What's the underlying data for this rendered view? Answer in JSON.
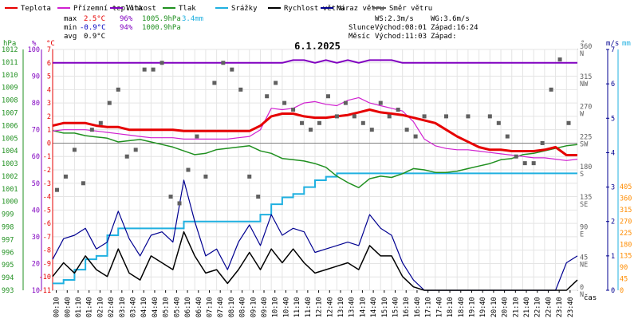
{
  "chart_data": {
    "type": "line",
    "title": "6.1.2025",
    "legend": [
      {
        "label": "Teplota",
        "color": "#e60000"
      },
      {
        "label": "Přízemní teplota",
        "color": "#d020d0"
      },
      {
        "label": "Vlhkost",
        "color": "#8000c0"
      },
      {
        "label": "Tlak",
        "color": "#209020"
      },
      {
        "label": "Srážky",
        "color": "#20b0e0"
      },
      {
        "label": "Rychlost větru",
        "color": "#000000"
      },
      {
        "label": "Náraz větru",
        "color": "#000090"
      },
      {
        "label": "Směr větru",
        "color": "#606060"
      }
    ],
    "stats": {
      "max_label": "max",
      "max_temp": "2.5°C",
      "max_hum": "96%",
      "max_press": "1005.9hPa",
      "max_rain": "3.4mm",
      "min_label": "min",
      "min_temp": "-0.9°C",
      "min_hum": "94%",
      "min_press": "1000.9hPa",
      "avg_label": "avg",
      "avg_temp": "0.9°C",
      "ws": "WS:2.3m/s",
      "wg": "WG:3.6m/s",
      "sun_label": "Slunce",
      "sun_rise": "Východ:08:01",
      "sun_set": "Západ:16:24",
      "moon_label": "Měsíc",
      "moon_rise": "Východ:11:03",
      "moon_set": "Západ:"
    },
    "axes": {
      "hpa_title": "hPa",
      "pct_title": "%",
      "temp_title": "°C",
      "dir_title": "°",
      "ms_title": "m/s",
      "mm_title": "mm",
      "x_title": "čas",
      "hpa_ticks": [
        "993",
        "994",
        "995",
        "996",
        "997",
        "998",
        "999",
        "1000",
        "1001",
        "1002",
        "1003",
        "1004",
        "1005",
        "1006",
        "1007",
        "1008",
        "1009",
        "1010",
        "1011",
        "1012"
      ],
      "pct_ticks": [
        "10",
        "20",
        "30",
        "40",
        "50",
        "60",
        "70",
        "80",
        "90",
        "100"
      ],
      "temp_ticks": [
        "-11",
        "-10",
        "-9",
        "-8",
        "-7",
        "-6",
        "-5",
        "-4",
        "-3",
        "-2",
        "-1",
        "0",
        "1",
        "2",
        "3",
        "4",
        "5",
        "6",
        "7"
      ],
      "dir_ticks": [
        {
          "deg": "0",
          "dir": "N"
        },
        {
          "deg": "45",
          "dir": "NE"
        },
        {
          "deg": "90",
          "dir": "E"
        },
        {
          "deg": "135",
          "dir": "SE"
        },
        {
          "deg": "180",
          "dir": "S"
        },
        {
          "deg": "225",
          "dir": "SW"
        },
        {
          "deg": "270",
          "dir": "W"
        },
        {
          "deg": "315",
          "dir": "NW"
        },
        {
          "deg": "360",
          "dir": "N"
        }
      ],
      "ms_ticks": [
        "0",
        "1",
        "2",
        "3",
        "4",
        "5",
        "6",
        "7"
      ],
      "mm_ticks": [
        "0",
        "45",
        "90",
        "135",
        "180",
        "225",
        "270",
        "315",
        "360",
        "405"
      ],
      "x_ticks": [
        "00:10",
        "00:40",
        "01:10",
        "01:40",
        "02:10",
        "02:40",
        "03:10",
        "03:40",
        "04:10",
        "04:40",
        "05:10",
        "05:40",
        "06:10",
        "06:40",
        "07:10",
        "07:40",
        "08:10",
        "08:40",
        "09:10",
        "09:40",
        "10:10",
        "10:40",
        "11:10",
        "11:40",
        "12:10",
        "12:40",
        "13:10",
        "13:40",
        "14:10",
        "14:40",
        "15:10",
        "15:40",
        "16:10",
        "16:40",
        "17:10",
        "17:40",
        "18:10",
        "18:40",
        "19:10",
        "19:40",
        "20:10",
        "20:40",
        "21:10",
        "21:40",
        "22:10",
        "22:40",
        "23:10",
        "23:40"
      ],
      "temp_range": [
        -11,
        7
      ],
      "humidity_range": [
        10,
        100
      ],
      "pressure_range": [
        993,
        1012
      ],
      "wind_range": [
        0,
        7
      ],
      "direction_range": [
        0,
        360
      ],
      "time_range_h": [
        0,
        24
      ]
    },
    "series": [
      {
        "name": "Teplota",
        "unit": "°C",
        "x": [
          0.0,
          0.5,
          1.0,
          1.5,
          2.0,
          2.5,
          3.0,
          3.5,
          4.0,
          4.5,
          5.0,
          5.5,
          6.0,
          6.5,
          7.0,
          7.5,
          8.0,
          8.5,
          9.0,
          9.5,
          10.0,
          10.5,
          11.0,
          11.5,
          12.0,
          12.5,
          13.0,
          13.5,
          14.0,
          14.5,
          15.0,
          15.5,
          16.0,
          16.5,
          17.0,
          17.5,
          18.0,
          18.5,
          19.0,
          19.5,
          20.0,
          20.5,
          21.0,
          21.5,
          22.0,
          22.5,
          23.0,
          23.5,
          24.0
        ],
        "y": [
          1.3,
          1.5,
          1.5,
          1.5,
          1.3,
          1.2,
          1.2,
          1.0,
          1.0,
          1.0,
          1.0,
          1.0,
          0.9,
          0.9,
          0.9,
          0.9,
          0.9,
          0.9,
          0.9,
          1.3,
          2.0,
          2.2,
          2.2,
          2.0,
          1.9,
          1.9,
          2.0,
          2.1,
          2.3,
          2.5,
          2.3,
          2.2,
          2.1,
          1.9,
          1.7,
          1.5,
          1.0,
          0.5,
          0.1,
          -0.3,
          -0.5,
          -0.5,
          -0.6,
          -0.6,
          -0.6,
          -0.5,
          -0.3,
          -0.9,
          -0.9
        ]
      },
      {
        "name": "Přízemní teplota",
        "unit": "°C",
        "x": [
          0.0,
          0.5,
          1.0,
          1.5,
          2.0,
          2.5,
          3.0,
          3.5,
          4.0,
          4.5,
          5.0,
          5.5,
          6.0,
          6.5,
          7.0,
          7.5,
          8.0,
          8.5,
          9.0,
          9.5,
          10.0,
          10.5,
          11.0,
          11.5,
          12.0,
          12.5,
          13.0,
          13.5,
          14.0,
          14.5,
          15.0,
          15.5,
          16.0,
          16.5,
          17.0,
          17.5,
          18.0,
          18.5,
          19.0,
          19.5,
          20.0,
          20.5,
          21.0,
          21.5,
          22.0,
          22.5,
          23.0,
          23.5,
          24.0
        ],
        "y": [
          0.9,
          1.0,
          1.0,
          1.0,
          0.9,
          0.8,
          0.7,
          0.6,
          0.5,
          0.4,
          0.4,
          0.4,
          0.3,
          0.3,
          0.3,
          0.3,
          0.3,
          0.4,
          0.5,
          1.0,
          2.6,
          2.5,
          2.6,
          3.0,
          3.1,
          2.9,
          2.8,
          3.2,
          3.4,
          3.0,
          2.8,
          2.6,
          2.4,
          1.6,
          0.3,
          -0.2,
          -0.4,
          -0.5,
          -0.5,
          -0.6,
          -0.7,
          -0.8,
          -0.9,
          -1.0,
          -1.1,
          -1.1,
          -1.2,
          -1.3,
          -1.2
        ]
      },
      {
        "name": "Vlhkost",
        "unit": "%",
        "x": [
          0,
          10.5,
          11.0,
          11.5,
          12.0,
          12.5,
          13.0,
          13.5,
          14.0,
          14.5,
          15.0,
          15.5,
          16.0,
          24
        ],
        "y": [
          95,
          95,
          96,
          96,
          95,
          96,
          95,
          96,
          95,
          96,
          96,
          96,
          95,
          95
        ]
      },
      {
        "name": "Tlak",
        "unit": "hPa",
        "x": [
          0.0,
          0.5,
          1.0,
          1.5,
          2.0,
          2.5,
          3.0,
          3.5,
          4.0,
          4.5,
          5.0,
          5.5,
          6.0,
          6.5,
          7.0,
          7.5,
          8.0,
          8.5,
          9.0,
          9.5,
          10.0,
          10.5,
          11.0,
          11.5,
          12.0,
          12.5,
          13.0,
          13.5,
          14.0,
          14.5,
          15.0,
          15.5,
          16.0,
          16.5,
          17.0,
          17.5,
          18.0,
          18.5,
          19.0,
          19.5,
          20.0,
          20.5,
          21.0,
          21.5,
          22.0,
          22.5,
          23.0,
          23.5,
          24.0
        ],
        "y": [
          1005.6,
          1005.4,
          1005.4,
          1005.2,
          1005.1,
          1005.0,
          1004.7,
          1004.8,
          1004.9,
          1004.7,
          1004.5,
          1004.3,
          1004.0,
          1003.7,
          1003.8,
          1004.1,
          1004.2,
          1004.3,
          1004.4,
          1004.0,
          1003.8,
          1003.4,
          1003.3,
          1003.2,
          1003.0,
          1002.7,
          1002.0,
          1001.5,
          1001.1,
          1001.8,
          1002.0,
          1001.9,
          1002.2,
          1002.6,
          1002.5,
          1002.3,
          1002.3,
          1002.4,
          1002.6,
          1002.8,
          1003.0,
          1003.3,
          1003.4,
          1003.7,
          1003.8,
          1004.0,
          1004.2,
          1004.4,
          1004.5
        ]
      },
      {
        "name": "Srážky",
        "unit": "mm",
        "x": [
          0.0,
          0.5,
          1.0,
          1.5,
          2.0,
          2.5,
          3.0,
          3.5,
          4.0,
          4.5,
          5.0,
          5.5,
          6.0,
          6.5,
          7.0,
          7.5,
          8.0,
          8.5,
          9.0,
          9.5,
          10.0,
          10.5,
          11.0,
          11.5,
          12.0,
          12.5,
          13.0,
          13.5,
          14.0,
          14.5,
          15.0,
          15.5,
          16.0,
          16.5,
          17.0,
          17.5,
          18.0,
          18.5,
          19.0,
          19.5,
          20.0,
          20.5,
          21.0,
          21.5,
          22.0,
          22.5,
          23.0,
          23.5,
          24.0
        ],
        "y": [
          0.2,
          0.3,
          0.6,
          0.9,
          1.0,
          1.6,
          1.8,
          1.8,
          1.8,
          1.8,
          1.8,
          1.8,
          2.0,
          2.0,
          2.0,
          2.0,
          2.0,
          2.0,
          2.0,
          2.2,
          2.5,
          2.7,
          2.8,
          3.0,
          3.2,
          3.3,
          3.4,
          3.4,
          3.4,
          3.4,
          3.4,
          3.4,
          3.4,
          3.4,
          3.4,
          3.4,
          3.4,
          3.4,
          3.4,
          3.4,
          3.4,
          3.4,
          3.4,
          3.4,
          3.4,
          3.4,
          3.4,
          3.4,
          3.4
        ]
      },
      {
        "name": "Rychlost větru",
        "unit": "m/s",
        "x": [
          0.0,
          0.5,
          1.0,
          1.5,
          2.0,
          2.5,
          3.0,
          3.5,
          4.0,
          4.5,
          5.0,
          5.5,
          6.0,
          6.5,
          7.0,
          7.5,
          8.0,
          8.5,
          9.0,
          9.5,
          10.0,
          10.5,
          11.0,
          11.5,
          12.0,
          12.5,
          13.0,
          13.5,
          14.0,
          14.5,
          15.0,
          15.5,
          16.0,
          16.5,
          17.0,
          17.5,
          18.0,
          18.5,
          19.0,
          19.5,
          20.0,
          20.5,
          21.0,
          21.5,
          22.0,
          22.5,
          23.0,
          23.5,
          24.0
        ],
        "y": [
          0.4,
          0.8,
          0.5,
          1.0,
          0.6,
          0.4,
          1.2,
          0.5,
          0.3,
          1.0,
          0.8,
          0.6,
          1.7,
          1.0,
          0.5,
          0.6,
          0.2,
          0.6,
          1.1,
          0.6,
          1.2,
          0.8,
          1.2,
          0.8,
          0.5,
          0.6,
          0.7,
          0.8,
          0.6,
          1.3,
          1.0,
          1.0,
          0.4,
          0.1,
          0,
          0,
          0,
          0,
          0,
          0,
          0,
          0,
          0,
          0,
          0,
          0,
          0,
          0,
          0.3
        ]
      },
      {
        "name": "Náraz větru",
        "unit": "m/s",
        "x": [
          0.0,
          0.5,
          1.0,
          1.5,
          2.0,
          2.5,
          3.0,
          3.5,
          4.0,
          4.5,
          5.0,
          5.5,
          6.0,
          6.5,
          7.0,
          7.5,
          8.0,
          8.5,
          9.0,
          9.5,
          10.0,
          10.5,
          11.0,
          11.5,
          12.0,
          12.5,
          13.0,
          13.5,
          14.0,
          14.5,
          15.0,
          15.5,
          16.0,
          16.5,
          17.0,
          17.5,
          18.0,
          18.5,
          19.0,
          19.5,
          20.0,
          20.5,
          21.0,
          21.5,
          22.0,
          22.5,
          23.0,
          23.5,
          24.0
        ],
        "y": [
          0.9,
          1.5,
          1.6,
          1.8,
          1.2,
          1.4,
          2.3,
          1.5,
          1.0,
          1.6,
          1.7,
          1.4,
          3.2,
          2.0,
          1.0,
          1.2,
          0.6,
          1.4,
          1.9,
          1.3,
          2.2,
          1.6,
          1.8,
          1.7,
          1.1,
          1.2,
          1.3,
          1.4,
          1.3,
          2.2,
          1.8,
          1.6,
          0.8,
          0.3,
          0,
          0,
          0,
          0,
          0,
          0,
          0,
          0,
          0,
          0,
          0,
          0,
          0,
          0.8,
          1.0
        ]
      },
      {
        "name": "Směr větru",
        "unit": "°",
        "x": [
          0.2,
          0.6,
          1.0,
          1.4,
          1.8,
          2.2,
          2.6,
          3.0,
          3.4,
          3.8,
          4.2,
          4.6,
          5.0,
          5.4,
          5.8,
          6.2,
          6.6,
          7.0,
          7.4,
          7.8,
          8.2,
          8.6,
          9.0,
          9.4,
          9.8,
          10.2,
          10.6,
          11.0,
          11.4,
          11.8,
          12.2,
          12.6,
          13.0,
          13.4,
          13.8,
          14.2,
          14.6,
          15.0,
          15.4,
          15.8,
          16.2,
          16.6,
          17.0,
          18.0,
          19.0,
          20.0,
          20.4,
          20.8,
          21.2,
          21.6,
          22.0,
          22.4,
          22.8,
          23.2,
          23.6
        ],
        "y": [
          150,
          170,
          210,
          160,
          240,
          250,
          280,
          300,
          200,
          210,
          330,
          330,
          340,
          140,
          130,
          180,
          230,
          170,
          310,
          340,
          330,
          300,
          170,
          140,
          290,
          310,
          280,
          270,
          250,
          240,
          250,
          290,
          260,
          280,
          260,
          250,
          240,
          280,
          260,
          270,
          240,
          230,
          260,
          260,
          260,
          260,
          250,
          230,
          200,
          190,
          190,
          220,
          300,
          345,
          250
        ]
      }
    ]
  }
}
